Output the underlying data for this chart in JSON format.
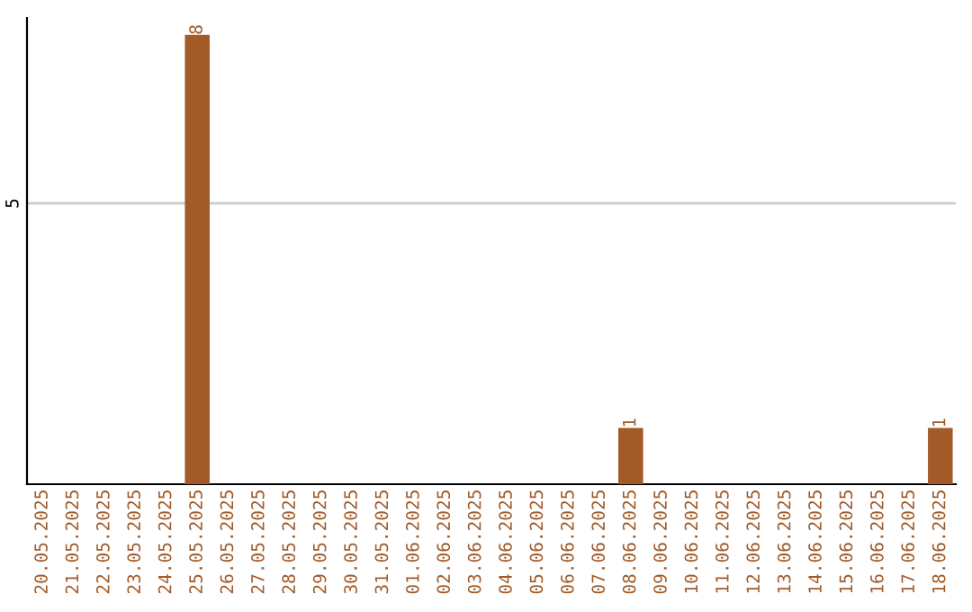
{
  "chart_data": {
    "type": "bar",
    "categories": [
      "20.05.2025",
      "21.05.2025",
      "22.05.2025",
      "23.05.2025",
      "24.05.2025",
      "25.05.2025",
      "26.05.2025",
      "27.05.2025",
      "28.05.2025",
      "29.05.2025",
      "30.05.2025",
      "31.05.2025",
      "01.06.2025",
      "02.06.2025",
      "03.06.2025",
      "04.06.2025",
      "05.06.2025",
      "06.06.2025",
      "07.06.2025",
      "08.06.2025",
      "09.06.2025",
      "10.06.2025",
      "11.06.2025",
      "12.06.2025",
      "13.06.2025",
      "14.06.2025",
      "15.06.2025",
      "16.06.2025",
      "17.06.2025",
      "18.06.2025"
    ],
    "values": [
      0,
      0,
      0,
      0,
      0,
      8,
      0,
      0,
      0,
      0,
      0,
      0,
      0,
      0,
      0,
      0,
      0,
      0,
      0,
      1,
      0,
      0,
      0,
      0,
      0,
      0,
      0,
      0,
      0,
      1
    ],
    "value_labels": [
      null,
      null,
      null,
      null,
      null,
      "8",
      null,
      null,
      null,
      null,
      null,
      null,
      null,
      null,
      null,
      null,
      null,
      null,
      null,
      "1",
      null,
      null,
      null,
      null,
      null,
      null,
      null,
      null,
      null,
      "1"
    ],
    "color": "#a15a28",
    "ylim": [
      0,
      8.3
    ],
    "yticks": [
      5
    ],
    "grid": "y"
  }
}
